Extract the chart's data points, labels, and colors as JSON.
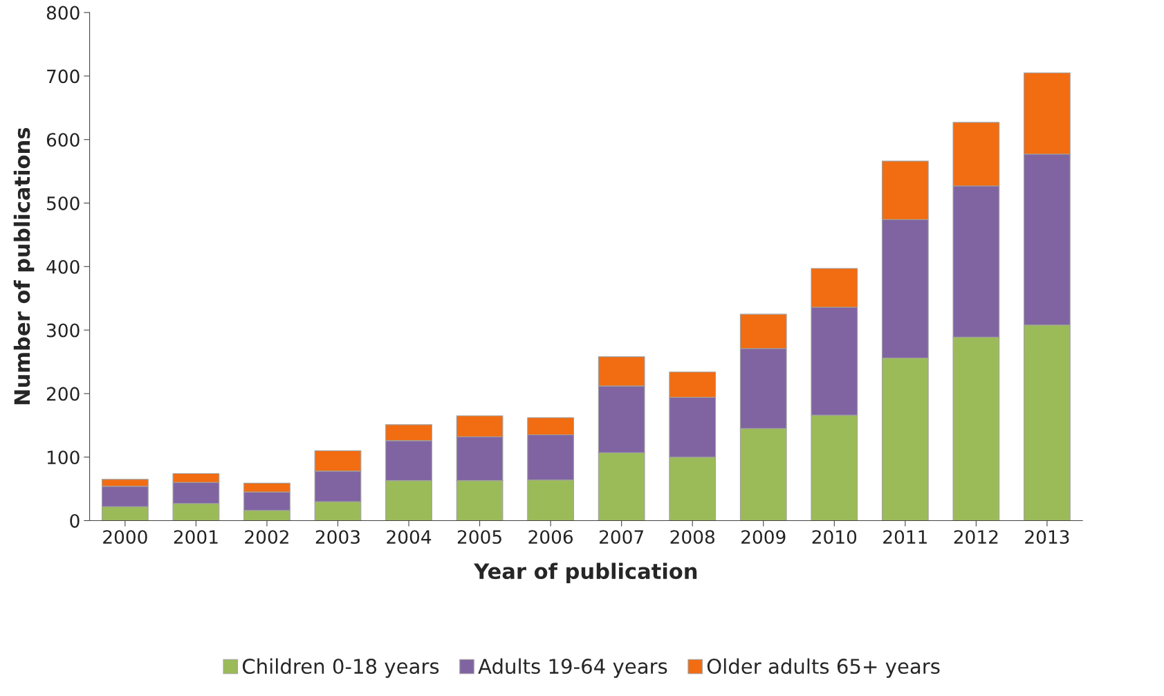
{
  "chart_data": {
    "type": "bar",
    "stacked": true,
    "xlabel": "Year of publication",
    "ylabel": "Number of publications",
    "categories": [
      "2000",
      "2001",
      "2002",
      "2003",
      "2004",
      "2005",
      "2006",
      "2007",
      "2008",
      "2009",
      "2010",
      "2011",
      "2012",
      "2013"
    ],
    "series": [
      {
        "name": "Children 0-18 years",
        "color": "#9bbb59",
        "values": [
          22,
          27,
          16,
          30,
          63,
          63,
          64,
          107,
          100,
          145,
          166,
          256,
          289,
          308
        ]
      },
      {
        "name": "Adults 19-64 years",
        "color": "#8064a2",
        "values": [
          32,
          33,
          29,
          48,
          63,
          69,
          71,
          105,
          94,
          126,
          170,
          218,
          238,
          269
        ]
      },
      {
        "name": "Older adults 65+ years",
        "color": "#f26c12",
        "values": [
          11,
          14,
          14,
          32,
          25,
          33,
          27,
          46,
          40,
          54,
          61,
          92,
          100,
          128
        ]
      }
    ],
    "ylim": [
      0,
      800
    ],
    "yticks": [
      0,
      100,
      200,
      300,
      400,
      500,
      600,
      700,
      800
    ],
    "grid": false,
    "legend": "bottom"
  }
}
